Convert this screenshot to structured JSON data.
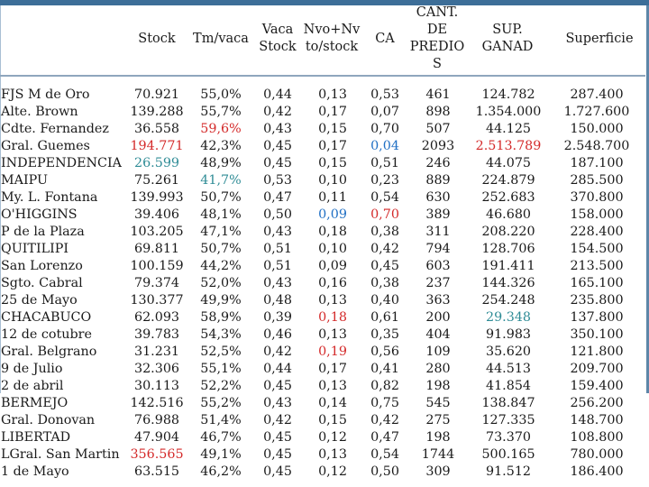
{
  "headers": {
    "stock": "Stock",
    "tm_vaca": "Tm/vaca",
    "vaca_stock": [
      "Vaca",
      "Stock"
    ],
    "nvo_nv": [
      "Nvo+Nv",
      "to/stock"
    ],
    "ca": "CA",
    "cant_predio": [
      "CANT.",
      "DE",
      "PREDIO",
      "S"
    ],
    "sup_ganad": [
      "SUP.",
      "GANAD"
    ],
    "superficie": "Superficie"
  },
  "rows": [
    {
      "name": "FJS M de Oro",
      "stock": "70.921",
      "tm": "55,0%",
      "vs": "0,44",
      "nv": "0,13",
      "ca": "0,53",
      "cant": "461",
      "sup": "124.782",
      "superf": "287.400"
    },
    {
      "name": "Alte. Brown",
      "stock": "139.288",
      "tm": "55,7%",
      "vs": "0,42",
      "nv": "0,17",
      "ca": "0,07",
      "cant": "898",
      "sup": "1.354.000",
      "superf": "1.727.600"
    },
    {
      "name": "Cdte. Fernandez",
      "stock": "36.558",
      "tm": "59,6%",
      "vs": "0,43",
      "nv": "0,15",
      "ca": "0,70",
      "cant": "507",
      "sup": "44.125",
      "superf": "150.000",
      "tm_color": "red"
    },
    {
      "name": "Gral. Guemes",
      "stock": "194.771",
      "tm": "42,3%",
      "vs": "0,45",
      "nv": "0,17",
      "ca": "0,04",
      "cant": "2093",
      "sup": "2.513.789",
      "superf": "2.548.700",
      "stock_color": "red",
      "ca_color": "blue",
      "sup_color": "red"
    },
    {
      "name": "INDEPENDENCIA",
      "stock": "26.599",
      "tm": "48,9%",
      "vs": "0,45",
      "nv": "0,15",
      "ca": "0,51",
      "cant": "246",
      "sup": "44.075",
      "superf": "187.100",
      "stock_color": "teal"
    },
    {
      "name": "MAIPU",
      "stock": "75.261",
      "tm": "41,7%",
      "vs": "0,53",
      "nv": "0,10",
      "ca": "0,23",
      "cant": "889",
      "sup": "224.879",
      "superf": "285.500",
      "tm_color": "teal"
    },
    {
      "name": "My. L. Fontana",
      "stock": "139.993",
      "tm": "50,7%",
      "vs": "0,47",
      "nv": "0,11",
      "ca": "0,54",
      "cant": "630",
      "sup": "252.683",
      "superf": "370.800"
    },
    {
      "name": "O'HIGGINS",
      "stock": "39.406",
      "tm": "48,1%",
      "vs": "0,50",
      "nv": "0,09",
      "ca": "0,70",
      "cant": "389",
      "sup": "46.680",
      "superf": "158.000",
      "nv_color": "blue",
      "ca_color": "red"
    },
    {
      "name": "P de la Plaza",
      "stock": "103.205",
      "tm": "47,1%",
      "vs": "0,43",
      "nv": "0,18",
      "ca": "0,38",
      "cant": "311",
      "sup": "208.220",
      "superf": "228.400"
    },
    {
      "name": "QUITILIPI",
      "stock": "69.811",
      "tm": "50,7%",
      "vs": "0,51",
      "nv": "0,10",
      "ca": "0,42",
      "cant": "794",
      "sup": "128.706",
      "superf": "154.500"
    },
    {
      "name": "San Lorenzo",
      "stock": "100.159",
      "tm": "44,2%",
      "vs": "0,51",
      "nv": "0,09",
      "ca": "0,45",
      "cant": "603",
      "sup": "191.411",
      "superf": "213.500"
    },
    {
      "name": "Sgto. Cabral",
      "stock": "79.374",
      "tm": "52,0%",
      "vs": "0,43",
      "nv": "0,16",
      "ca": "0,38",
      "cant": "237",
      "sup": "144.326",
      "superf": "165.100"
    },
    {
      "name": "25 de Mayo",
      "stock": "130.377",
      "tm": "49,9%",
      "vs": "0,48",
      "nv": "0,13",
      "ca": "0,40",
      "cant": "363",
      "sup": "254.248",
      "superf": "235.800"
    },
    {
      "name": "CHACABUCO",
      "stock": "62.093",
      "tm": "58,9%",
      "vs": "0,39",
      "nv": "0,18",
      "ca": "0,61",
      "cant": "200",
      "sup": "29.348",
      "superf": "137.800",
      "nv_color": "red",
      "sup_color": "teal"
    },
    {
      "name": "12 de cotubre",
      "stock": "39.783",
      "tm": "54,3%",
      "vs": "0,46",
      "nv": "0,13",
      "ca": "0,35",
      "cant": "404",
      "sup": "91.983",
      "superf": "350.100"
    },
    {
      "name": "Gral. Belgrano",
      "stock": "31.231",
      "tm": "52,5%",
      "vs": "0,42",
      "nv": "0,19",
      "ca": "0,56",
      "cant": "109",
      "sup": "35.620",
      "superf": "121.800",
      "nv_color": "red"
    },
    {
      "name": "9 de Julio",
      "stock": "32.306",
      "tm": "55,1%",
      "vs": "0,44",
      "nv": "0,17",
      "ca": "0,41",
      "cant": "280",
      "sup": "44.513",
      "superf": "209.700"
    },
    {
      "name": "2 de abril",
      "stock": "30.113",
      "tm": "52,2%",
      "vs": "0,45",
      "nv": "0,13",
      "ca": "0,82",
      "cant": "198",
      "sup": "41.854",
      "superf": "159.400"
    },
    {
      "name": "BERMEJO",
      "stock": "142.516",
      "tm": "55,2%",
      "vs": "0,43",
      "nv": "0,14",
      "ca": "0,75",
      "cant": "545",
      "sup": "138.847",
      "superf": "256.200"
    },
    {
      "name": "Gral. Donovan",
      "stock": "76.988",
      "tm": "51,4%",
      "vs": "0,42",
      "nv": "0,15",
      "ca": "0,42",
      "cant": "275",
      "sup": "127.335",
      "superf": "148.700"
    },
    {
      "name": "LIBERTAD",
      "stock": "47.904",
      "tm": "46,7%",
      "vs": "0,45",
      "nv": "0,12",
      "ca": "0,47",
      "cant": "198",
      "sup": "73.370",
      "superf": "108.800"
    },
    {
      "name": "LGral. San Martin",
      "stock": "356.565",
      "tm": "49,1%",
      "vs": "0,45",
      "nv": "0,13",
      "ca": "0,54",
      "cant": "1744",
      "sup": "500.165",
      "superf": "780.000",
      "stock_color": "red"
    },
    {
      "name": "1 de Mayo",
      "stock": "63.515",
      "tm": "46,2%",
      "vs": "0,45",
      "nv": "0,12",
      "ca": "0,50",
      "cant": "309",
      "sup": "91.512",
      "superf": "186.400"
    }
  ]
}
